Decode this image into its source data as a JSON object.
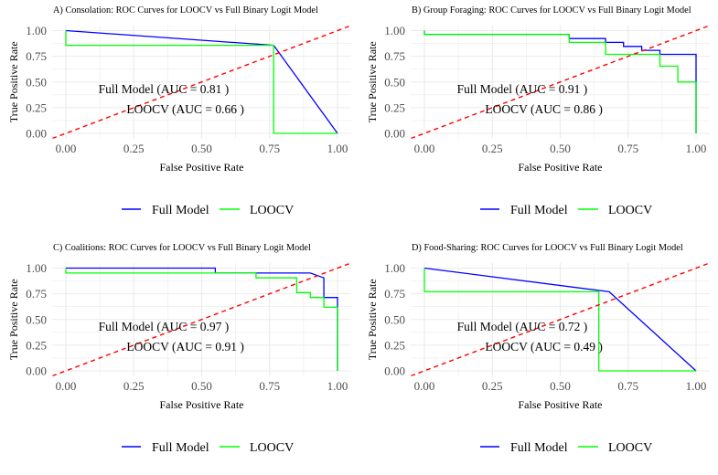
{
  "chart_data": [
    {
      "type": "line",
      "title": "A) Consolation: ROC Curves for LOOCV vs Full Binary Logit Model",
      "xlabel": "False Positive Rate",
      "ylabel": "True Positive Rate",
      "xlim": [
        0,
        1
      ],
      "ylim": [
        0,
        1
      ],
      "xticks": [
        "0.00",
        "0.25",
        "0.50",
        "0.75",
        "1.00"
      ],
      "yticks": [
        "0.00",
        "0.25",
        "0.50",
        "0.75",
        "1.00"
      ],
      "grid": true,
      "legend": "bottom",
      "annotations": [
        "Full Model (AUC = 0.81 )",
        "LOOCV (AUC = 0.66 )"
      ],
      "series": [
        {
          "name": "Full Model",
          "color": "#0000ff",
          "x": [
            0,
            0.765,
            1
          ],
          "y": [
            1,
            0.857,
            0
          ]
        },
        {
          "name": "LOOCV",
          "color": "#00ff00",
          "x": [
            0,
            0,
            0.765,
            0.765,
            1
          ],
          "y": [
            1,
            0.857,
            0.857,
            0,
            0
          ]
        },
        {
          "color": "#ff0000",
          "dashed": true,
          "x": [
            -0.05,
            1.05
          ],
          "y": [
            -0.05,
            1.05
          ]
        }
      ]
    },
    {
      "type": "line",
      "title": "B) Group Foraging: ROC Curves for LOOCV vs Full Binary Logit Model",
      "xlabel": "False Positive Rate",
      "ylabel": "True Positive Rate",
      "xlim": [
        0,
        1
      ],
      "ylim": [
        0,
        1
      ],
      "xticks": [
        "0.00",
        "0.25",
        "0.50",
        "0.75",
        "1.00"
      ],
      "yticks": [
        "0.00",
        "0.25",
        "0.50",
        "0.75",
        "1.00"
      ],
      "grid": true,
      "legend": "bottom",
      "annotations": [
        "Full Model (AUC = 0.91 )",
        "LOOCV (AUC = 0.86 )"
      ],
      "series": [
        {
          "name": "Full Model",
          "color": "#0000ff",
          "x": [
            0,
            0,
            0.533,
            0.533,
            0.667,
            0.667,
            0.733,
            0.733,
            0.8,
            0.8,
            0.867,
            0.867,
            1,
            1
          ],
          "y": [
            1,
            0.962,
            0.962,
            0.923,
            0.923,
            0.885,
            0.885,
            0.846,
            0.846,
            0.808,
            0.808,
            0.769,
            0.769,
            0
          ]
        },
        {
          "name": "LOOCV",
          "color": "#00ff00",
          "x": [
            0,
            0,
            0.533,
            0.533,
            0.667,
            0.667,
            0.867,
            0.867,
            0.933,
            0.933,
            1,
            1
          ],
          "y": [
            1,
            0.962,
            0.962,
            0.885,
            0.885,
            0.769,
            0.769,
            0.654,
            0.654,
            0.5,
            0.5,
            0
          ]
        },
        {
          "color": "#ff0000",
          "dashed": true,
          "x": [
            -0.05,
            1.05
          ],
          "y": [
            -0.05,
            1.05
          ]
        }
      ]
    },
    {
      "type": "line",
      "title": "C) Coalitions: ROC Curves for LOOCV vs Full Binary Logit Model",
      "xlabel": "False Positive Rate",
      "ylabel": "True Positive Rate",
      "xlim": [
        0,
        1
      ],
      "ylim": [
        0,
        1
      ],
      "xticks": [
        "0.00",
        "0.25",
        "0.50",
        "0.75",
        "1.00"
      ],
      "yticks": [
        "0.00",
        "0.25",
        "0.50",
        "0.75",
        "1.00"
      ],
      "grid": true,
      "legend": "bottom",
      "annotations": [
        "Full Model (AUC = 0.97 )",
        "LOOCV (AUC = 0.91 )"
      ],
      "series": [
        {
          "name": "Full Model",
          "color": "#0000ff",
          "x": [
            0,
            0.55,
            0.55,
            0.9,
            0.95,
            0.95,
            1,
            1
          ],
          "y": [
            1,
            1,
            0.952,
            0.952,
            0.905,
            0.714,
            0.714,
            0
          ]
        },
        {
          "name": "LOOCV",
          "color": "#00ff00",
          "x": [
            0,
            0,
            0.7,
            0.7,
            0.85,
            0.85,
            0.9,
            0.9,
            0.95,
            0.95,
            1,
            1
          ],
          "y": [
            1,
            0.952,
            0.952,
            0.905,
            0.905,
            0.762,
            0.762,
            0.714,
            0.714,
            0.619,
            0.619,
            0
          ]
        },
        {
          "color": "#ff0000",
          "dashed": true,
          "x": [
            -0.05,
            1.05
          ],
          "y": [
            -0.05,
            1.05
          ]
        }
      ]
    },
    {
      "type": "line",
      "title": "D) Food-Sharing: ROC Curves for LOOCV vs Full Binary Logit Model",
      "xlabel": "False Positive Rate",
      "ylabel": "True Positive Rate",
      "xlim": [
        0,
        1
      ],
      "ylim": [
        0,
        1
      ],
      "xticks": [
        "0.00",
        "0.25",
        "0.50",
        "0.75",
        "1.00"
      ],
      "yticks": [
        "0.00",
        "0.25",
        "0.50",
        "0.75",
        "1.00"
      ],
      "grid": true,
      "legend": "bottom",
      "annotations": [
        "Full Model (AUC = 0.72 )",
        "LOOCV (AUC = 0.49 )"
      ],
      "series": [
        {
          "name": "Full Model",
          "color": "#0000ff",
          "x": [
            0,
            0.68,
            1
          ],
          "y": [
            1,
            0.77,
            0
          ]
        },
        {
          "name": "LOOCV",
          "color": "#00ff00",
          "x": [
            0,
            0,
            0.642,
            0.642,
            1
          ],
          "y": [
            1,
            0.77,
            0.77,
            0,
            0
          ]
        },
        {
          "color": "#ff0000",
          "dashed": true,
          "x": [
            -0.05,
            1.05
          ],
          "y": [
            -0.05,
            1.05
          ]
        }
      ]
    }
  ]
}
